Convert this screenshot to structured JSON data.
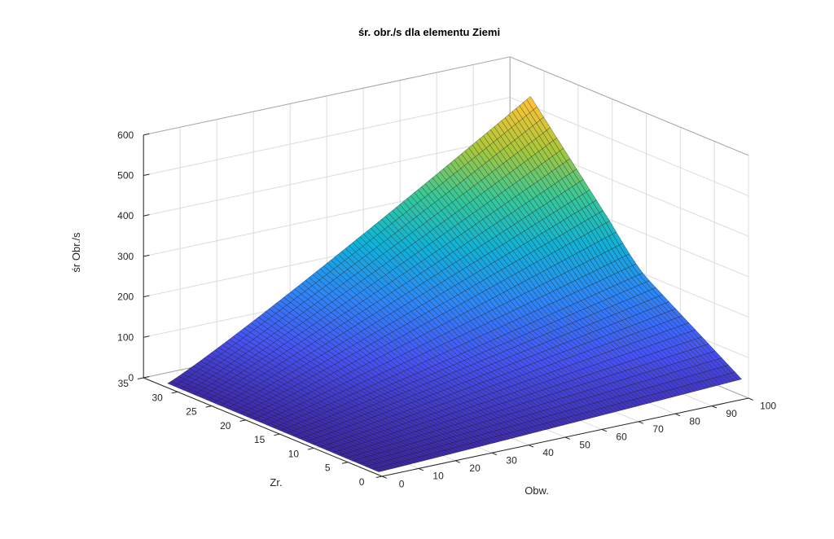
{
  "chart_data": {
    "type": "surface3d",
    "title": "śr. obr./s dla elementu Ziemi",
    "xlabel": "Obw.",
    "ylabel": "Zr.",
    "zlabel": "śr Obr./s",
    "xlim": [
      0,
      100
    ],
    "ylim": [
      0,
      35
    ],
    "zlim": [
      0,
      600
    ],
    "x_ticks": [
      "0",
      "10",
      "20",
      "30",
      "40",
      "50",
      "60",
      "70",
      "80",
      "90",
      "100"
    ],
    "y_ticks": [
      "0",
      "5",
      "10",
      "15",
      "20",
      "25",
      "30",
      "35"
    ],
    "z_ticks": [
      "0",
      "100",
      "200",
      "300",
      "400",
      "500",
      "600"
    ],
    "x_range": [
      1,
      100
    ],
    "y_range": [
      1,
      32
    ],
    "grid": true,
    "colormap": "parula",
    "surface_samples": [
      {
        "x": 1,
        "y": 1,
        "z": 2
      },
      {
        "x": 100,
        "y": 1,
        "z": 40
      },
      {
        "x": 1,
        "y": 32,
        "z": 5
      },
      {
        "x": 100,
        "y": 32,
        "z": 590
      },
      {
        "x": 100,
        "y": 20,
        "z": 400
      },
      {
        "x": 100,
        "y": 15,
        "z": 200
      },
      {
        "x": 100,
        "y": 10,
        "z": 165
      },
      {
        "x": 60,
        "y": 32,
        "z": 520
      },
      {
        "x": 50,
        "y": 16,
        "z": 240
      }
    ],
    "grid_cols_x": 100,
    "grid_rows_y": 32
  }
}
